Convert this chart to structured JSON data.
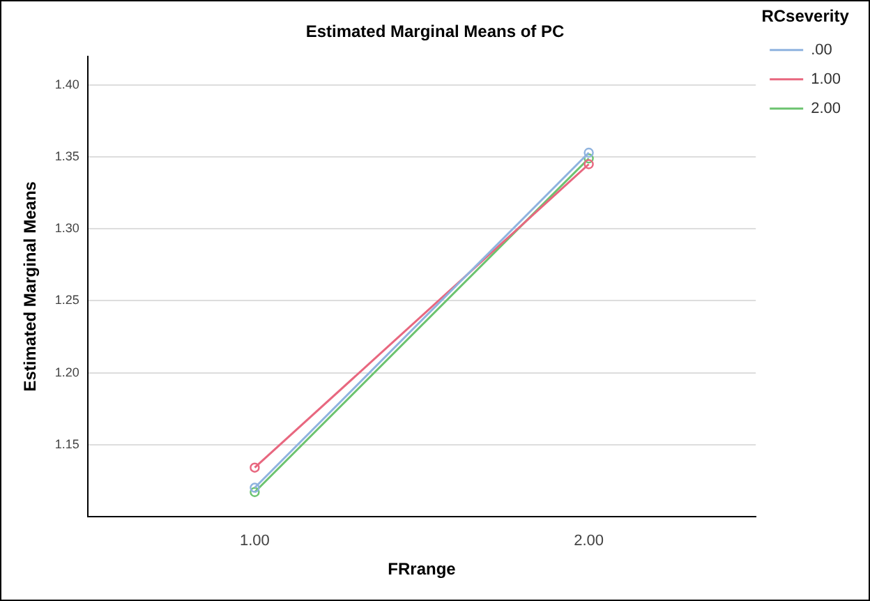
{
  "chart_data": {
    "type": "line",
    "title": "Estimated Marginal Means of PC",
    "xlabel": "FRrange",
    "ylabel": "Estimated Marginal Means",
    "legend_title": "RCseverity",
    "categories": [
      "1.00",
      "2.00"
    ],
    "series": [
      {
        "name": ".00",
        "color": "#8fb3df",
        "values": [
          1.12,
          1.353
        ]
      },
      {
        "name": "1.00",
        "color": "#e8677f",
        "values": [
          1.134,
          1.345
        ]
      },
      {
        "name": "2.00",
        "color": "#6cc36f",
        "values": [
          1.117,
          1.349
        ]
      }
    ],
    "ylim": [
      1.1,
      1.42
    ],
    "yticks": [
      {
        "value": 1.15,
        "label": "1.15"
      },
      {
        "value": 1.2,
        "label": "1.20"
      },
      {
        "value": 1.25,
        "label": "1.25"
      },
      {
        "value": 1.3,
        "label": "1.30"
      },
      {
        "value": 1.35,
        "label": "1.35"
      },
      {
        "value": 1.4,
        "label": "1.40"
      }
    ],
    "grid": "y",
    "legend": "top right",
    "marker": "circle",
    "line_style": "solid"
  }
}
